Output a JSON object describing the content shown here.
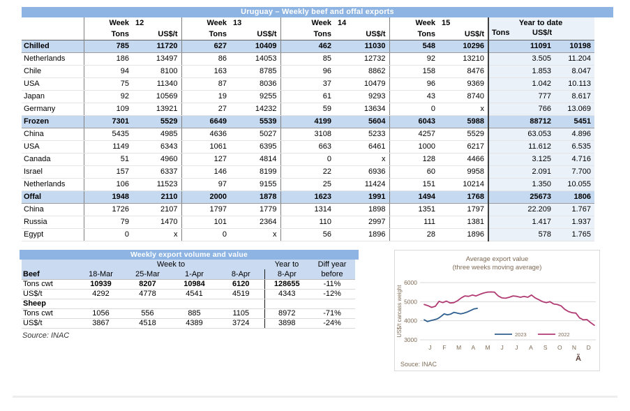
{
  "colors": {
    "header_bar": "#8DB4E2",
    "section_row": "#C5D9F1",
    "ytd_fill": "#EAF1F9",
    "series_2023": "#2F5F8F",
    "series_2022": "#B13A73",
    "chart_text": "#7E6A55"
  },
  "export_table": {
    "title": "Uruguay – Weekly beef and offal exports",
    "week_groups": [
      {
        "label": "Week",
        "number": "12"
      },
      {
        "label": "Week",
        "number": "13"
      },
      {
        "label": "Week",
        "number": "14"
      },
      {
        "label": "Week",
        "number": "15"
      }
    ],
    "ytd_label": "Year to date",
    "tons_label": "Tons",
    "usd_label": "US$/t",
    "rows": [
      {
        "label": "Chilled",
        "type": "category",
        "values": [
          "785",
          "11720",
          "627",
          "10409",
          "462",
          "11030",
          "548",
          "10296",
          "11091",
          "10198"
        ]
      },
      {
        "label": "Netherlands",
        "type": "country",
        "values": [
          "186",
          "13497",
          "86",
          "14053",
          "85",
          "12732",
          "92",
          "13210",
          "3.505",
          "11.204"
        ]
      },
      {
        "label": "Chile",
        "type": "country",
        "values": [
          "94",
          "8100",
          "163",
          "8785",
          "96",
          "8862",
          "158",
          "8476",
          "1.853",
          "8.047"
        ]
      },
      {
        "label": "USA",
        "type": "country",
        "values": [
          "75",
          "11340",
          "87",
          "8036",
          "37",
          "10479",
          "96",
          "9369",
          "1.042",
          "10.113"
        ]
      },
      {
        "label": "Japan",
        "type": "country",
        "values": [
          "92",
          "10569",
          "19",
          "9255",
          "61",
          "9293",
          "43",
          "8740",
          "777",
          "8.617"
        ]
      },
      {
        "label": "Germany",
        "type": "country",
        "values": [
          "109",
          "13921",
          "27",
          "14232",
          "59",
          "13634",
          "0",
          "x",
          "766",
          "13.069"
        ]
      },
      {
        "label": "Frozen",
        "type": "category",
        "values": [
          "7301",
          "5529",
          "6649",
          "5539",
          "4199",
          "5604",
          "6043",
          "5988",
          "88712",
          "5451"
        ]
      },
      {
        "label": "China",
        "type": "country",
        "values": [
          "5435",
          "4985",
          "4636",
          "5027",
          "3108",
          "5233",
          "4257",
          "5529",
          "63.053",
          "4.896"
        ]
      },
      {
        "label": "USA",
        "type": "country",
        "values": [
          "1149",
          "6343",
          "1061",
          "6395",
          "663",
          "6461",
          "1000",
          "6217",
          "11.612",
          "6.535"
        ]
      },
      {
        "label": "Canada",
        "type": "country",
        "values": [
          "51",
          "4960",
          "127",
          "4814",
          "0",
          "x",
          "128",
          "4466",
          "3.125",
          "4.716"
        ]
      },
      {
        "label": "Israel",
        "type": "country",
        "values": [
          "157",
          "6337",
          "146",
          "8199",
          "22",
          "6936",
          "60",
          "9958",
          "2.091",
          "7.700"
        ]
      },
      {
        "label": "Netherlands",
        "type": "country",
        "values": [
          "106",
          "11523",
          "97",
          "9155",
          "25",
          "11424",
          "151",
          "10214",
          "1.350",
          "10.055"
        ]
      },
      {
        "label": "Offal",
        "type": "category",
        "values": [
          "1948",
          "2110",
          "2000",
          "1878",
          "1623",
          "1991",
          "1494",
          "1768",
          "25673",
          "1806"
        ]
      },
      {
        "label": "China",
        "type": "country",
        "values": [
          "1726",
          "2107",
          "1797",
          "1779",
          "1314",
          "1898",
          "1351",
          "1797",
          "22.209",
          "1.767"
        ]
      },
      {
        "label": "Russia",
        "type": "country",
        "values": [
          "79",
          "1470",
          "101",
          "2364",
          "110",
          "2997",
          "111",
          "1381",
          "1.417",
          "1.937"
        ]
      },
      {
        "label": "Egypt",
        "type": "country",
        "values": [
          "0",
          "x",
          "0",
          "x",
          "56",
          "1896",
          "28",
          "1896",
          "578",
          "1.765"
        ]
      }
    ]
  },
  "weekly_table": {
    "title": "Weekly export volume and value",
    "week_to_label": "Week to",
    "year_to_label": "Year to",
    "diff_label": "Diff year",
    "diff_sub_label": "before",
    "col_dates": [
      "18-Mar",
      "25-Mar",
      "1-Apr",
      "8-Apr"
    ],
    "ytd_date": "8-Apr",
    "sections": [
      {
        "name": "Beef",
        "rows": [
          {
            "label": "Tons cwt",
            "bold": true,
            "values": [
              "10939",
              "8207",
              "10984",
              "6120",
              "128655",
              "-11%"
            ]
          },
          {
            "label": "US$/t",
            "bold": false,
            "values": [
              "4292",
              "4778",
              "4541",
              "4519",
              "4343",
              "-12%"
            ]
          }
        ]
      },
      {
        "name": "Sheep",
        "rows": [
          {
            "label": "Tons cwt",
            "bold": false,
            "values": [
              "1056",
              "556",
              "885",
              "1105",
              "8972",
              "-71%"
            ]
          },
          {
            "label": "US$/t",
            "bold": false,
            "values": [
              "3867",
              "4518",
              "4389",
              "3724",
              "3898",
              "-24%"
            ]
          }
        ]
      }
    ],
    "source": "Source: INAC"
  },
  "chart_data": {
    "type": "line",
    "title": "Average export  value",
    "subtitle": "(three weeks moving average)",
    "ylabel": "US$/t carcass weight",
    "ylim": [
      3000,
      6000
    ],
    "yticks": [
      3000,
      4000,
      5000,
      6000
    ],
    "x_labels": [
      "J",
      "F",
      "M",
      "A",
      "M",
      "J",
      "J",
      "A",
      "S",
      "O",
      "N",
      "D"
    ],
    "grid": true,
    "legend_position": "bottom-center-inside",
    "series": [
      {
        "name": "2023",
        "color": "#2F5F8F",
        "x_start": 0.1,
        "x_step": 0.23,
        "values": [
          4050,
          3960,
          4010,
          4050,
          4100,
          4220,
          4360,
          4310,
          4350,
          4440,
          4400,
          4360,
          4400,
          4460,
          4540,
          4620,
          4650
        ]
      },
      {
        "name": "2022",
        "color": "#B13A73",
        "x_start": 0.1,
        "x_step": 0.2565,
        "values": [
          4850,
          4790,
          4700,
          4760,
          5020,
          4950,
          5030,
          4930,
          4950,
          5050,
          5200,
          5300,
          5280,
          5350,
          5300,
          5380,
          5450,
          5500,
          5510,
          5500,
          5300,
          5200,
          5180,
          5230,
          5300,
          5280,
          5230,
          5280,
          5230,
          5350,
          5200,
          5100,
          5000,
          4950,
          5000,
          4880,
          4850,
          4780,
          4600,
          4480,
          4420,
          4400,
          4150,
          4050,
          4060,
          3900,
          3760
        ]
      }
    ],
    "source": "Souce: INAC",
    "corner_glyph": "Ã"
  }
}
